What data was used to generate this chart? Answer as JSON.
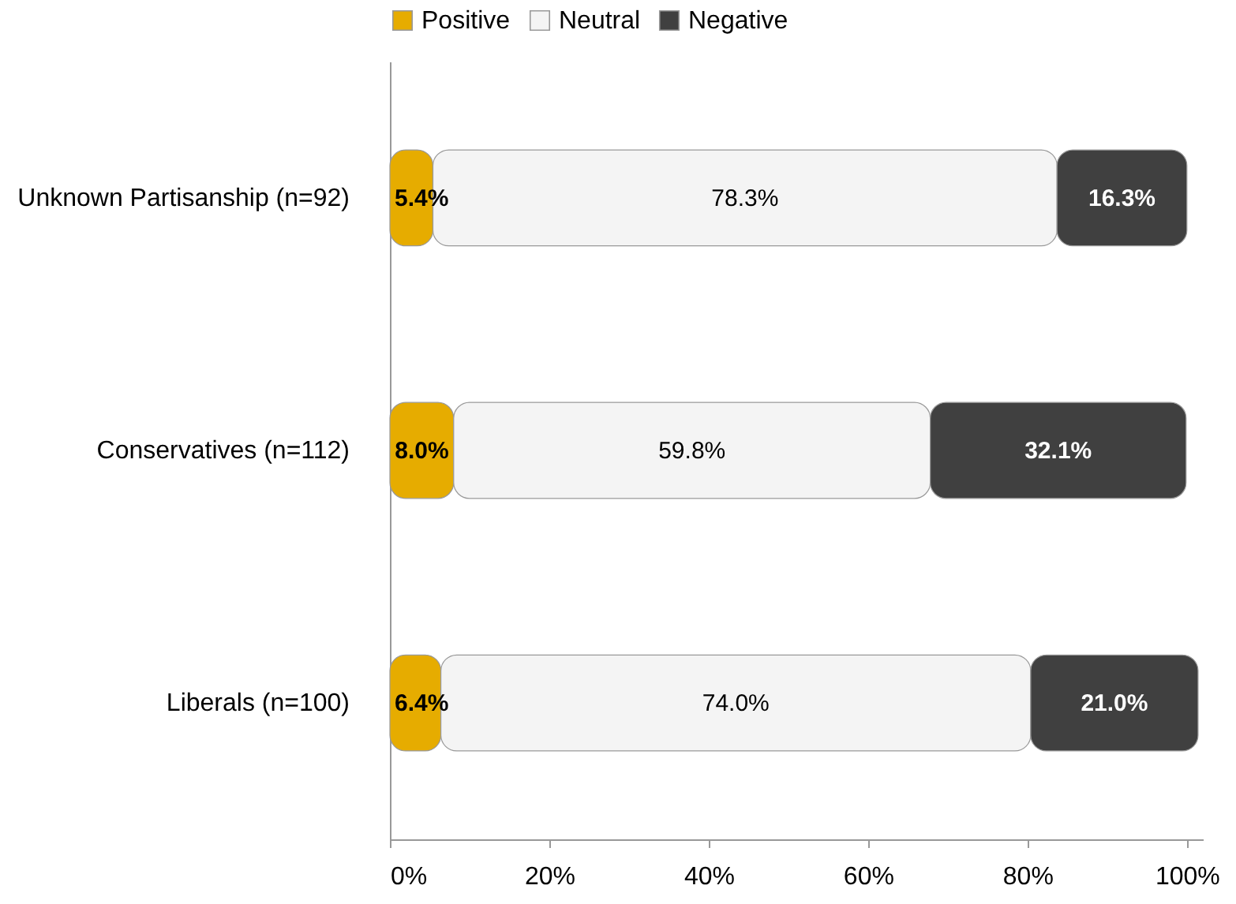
{
  "chart_data": {
    "type": "bar",
    "orientation": "horizontal",
    "stacked": true,
    "categories": [
      "Unknown Partisanship (n=92)",
      "Conservatives (n=112)",
      "Liberals (n=100)"
    ],
    "series": [
      {
        "name": "Positive",
        "color": "#e6ac00",
        "values": [
          5.4,
          8.0,
          6.4
        ],
        "value_labels": [
          "5.4%",
          "8.0%",
          "6.4%"
        ]
      },
      {
        "name": "Neutral",
        "color": "#f4f4f4",
        "values": [
          78.3,
          59.8,
          74.0
        ],
        "value_labels": [
          "78.3%",
          "59.8%",
          "74.0%"
        ]
      },
      {
        "name": "Negative",
        "color": "#404040",
        "values": [
          16.3,
          32.1,
          21.0
        ],
        "value_labels": [
          "16.3%",
          "32.1%",
          "21.0%"
        ]
      }
    ],
    "xlim": [
      0,
      102
    ],
    "xticks": [
      {
        "value": 0,
        "label": "0%"
      },
      {
        "value": 20,
        "label": "20%"
      },
      {
        "value": 40,
        "label": "40%"
      },
      {
        "value": 60,
        "label": "60%"
      },
      {
        "value": 80,
        "label": "80%"
      },
      {
        "value": 100,
        "label": "100%"
      }
    ],
    "grid": false,
    "legend": "top"
  }
}
